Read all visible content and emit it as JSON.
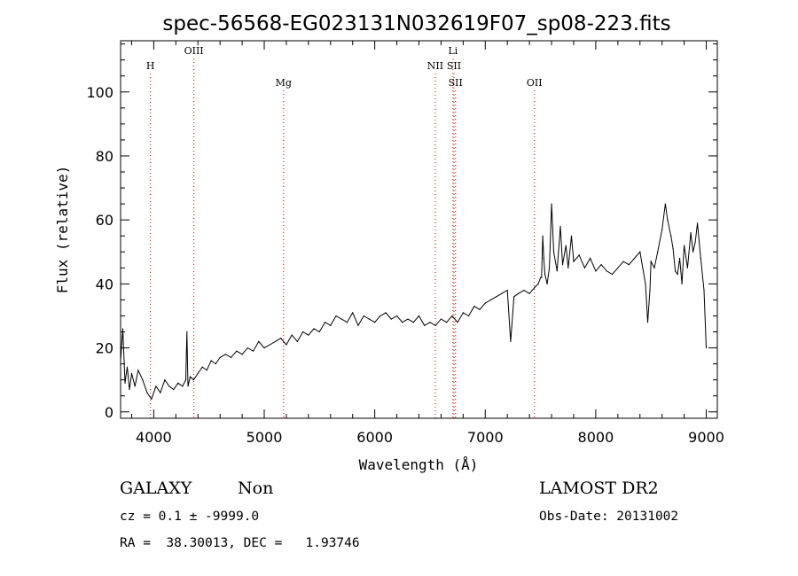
{
  "chart_data": {
    "type": "line",
    "title": "spec-56568-EG023131N032619F07_sp08-223.fits",
    "xlabel": "Wavelength (Å)",
    "ylabel": "Flux (relative)",
    "xlim": [
      3700,
      9100
    ],
    "ylim": [
      -2,
      116
    ],
    "xticks": [
      4000,
      5000,
      6000,
      7000,
      8000,
      9000
    ],
    "yticks": [
      0,
      20,
      40,
      60,
      80,
      100
    ],
    "grid": false,
    "line_color": "#000000",
    "x": [
      3700,
      3720,
      3740,
      3760,
      3780,
      3800,
      3830,
      3860,
      3900,
      3940,
      3980,
      4020,
      4060,
      4100,
      4140,
      4180,
      4220,
      4260,
      4290,
      4300,
      4310,
      4330,
      4360,
      4400,
      4440,
      4480,
      4520,
      4560,
      4600,
      4650,
      4700,
      4750,
      4800,
      4850,
      4900,
      4950,
      5000,
      5050,
      5100,
      5150,
      5200,
      5250,
      5300,
      5350,
      5400,
      5450,
      5500,
      5550,
      5600,
      5650,
      5700,
      5750,
      5800,
      5850,
      5900,
      5950,
      6000,
      6050,
      6100,
      6150,
      6200,
      6250,
      6300,
      6350,
      6400,
      6450,
      6500,
      6550,
      6600,
      6650,
      6700,
      6750,
      6800,
      6850,
      6900,
      6950,
      7000,
      7050,
      7100,
      7150,
      7200,
      7230,
      7260,
      7300,
      7350,
      7400,
      7450,
      7480,
      7500,
      7510,
      7520,
      7530,
      7540,
      7560,
      7580,
      7600,
      7620,
      7650,
      7680,
      7700,
      7730,
      7750,
      7780,
      7800,
      7850,
      7900,
      7950,
      8000,
      8050,
      8100,
      8150,
      8200,
      8250,
      8300,
      8350,
      8400,
      8430,
      8450,
      8470,
      8490,
      8500,
      8530,
      8560,
      8600,
      8630,
      8650,
      8680,
      8700,
      8720,
      8740,
      8760,
      8780,
      8800,
      8830,
      8860,
      8880,
      8900,
      8920,
      8950,
      8980,
      9000
    ],
    "y": [
      16,
      26,
      9,
      14,
      7,
      12,
      8,
      13,
      10,
      6,
      4,
      8,
      6,
      10,
      8,
      7,
      9,
      8,
      10,
      25,
      8,
      11,
      10,
      12,
      14,
      13,
      16,
      15,
      17,
      18,
      17,
      19,
      18,
      20,
      19,
      22,
      20,
      21,
      22,
      23,
      21,
      24,
      22,
      25,
      24,
      26,
      25,
      28,
      27,
      30,
      29,
      28,
      31,
      27,
      30,
      29,
      28,
      30,
      31,
      29,
      30,
      28,
      29,
      28,
      30,
      27,
      28,
      27,
      29,
      28,
      30,
      28,
      31,
      30,
      33,
      32,
      34,
      35,
      36,
      37,
      38,
      22,
      36,
      37,
      38,
      37,
      39,
      40,
      42,
      42,
      55,
      48,
      43,
      40,
      45,
      65,
      50,
      44,
      58,
      46,
      52,
      45,
      55,
      47,
      49,
      45,
      48,
      44,
      46,
      44,
      43,
      45,
      47,
      46,
      48,
      50,
      44,
      40,
      28,
      38,
      47,
      45,
      50,
      57,
      65,
      60,
      55,
      51,
      44,
      43,
      48,
      40,
      52,
      45,
      56,
      50,
      53,
      59,
      48,
      38,
      20
    ]
  },
  "lines": [
    {
      "label": "H",
      "x": 3970,
      "level": 3,
      "color": "#cc0000"
    },
    {
      "label": "OIII",
      "x": 4363,
      "level": 1,
      "color": "#cc0000"
    },
    {
      "label": "Mg",
      "x": 5175,
      "level": 4,
      "color": "#cc0000"
    },
    {
      "label": "NII",
      "x": 6548,
      "level": 3,
      "color": "#cc0000"
    },
    {
      "label": "Li",
      "x": 6708,
      "level": 2,
      "color": "#cc0000"
    },
    {
      "label": "SII",
      "x": 6717,
      "level": 3,
      "color": "#cc0000"
    },
    {
      "label": "SII",
      "x": 6731,
      "level": 4,
      "color": "#cc0000"
    },
    {
      "label": "OII",
      "x": 7445,
      "level": 4,
      "color": "#cc0000"
    }
  ],
  "info": {
    "object_class": "GALAXY",
    "subclass": "Non",
    "cz": "cz = 0.1 ± -9999.0",
    "radec": "RA =  38.30013, DEC =   1.93746",
    "survey": "LAMOST DR2",
    "obs_date": "Obs-Date: 20131002"
  }
}
